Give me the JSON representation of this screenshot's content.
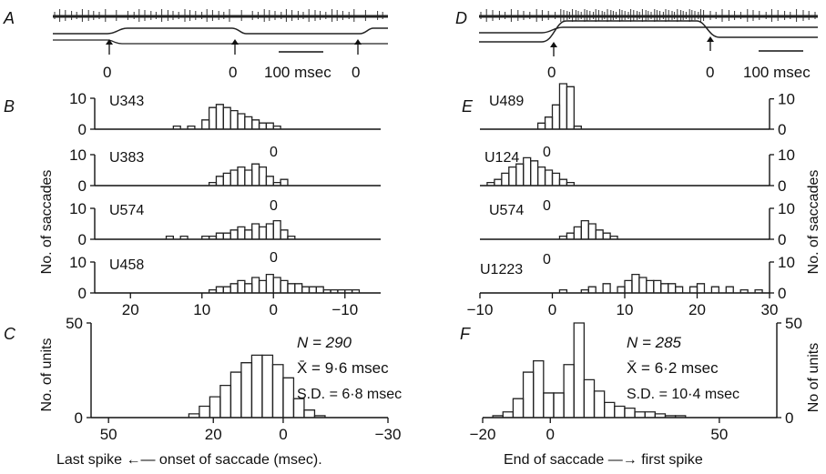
{
  "figure": {
    "panel_labels": {
      "A": "A",
      "B": "B",
      "C": "C",
      "D": "D",
      "E": "E",
      "F": "F"
    },
    "left_bottom_xlabel": "Last spike ←— onset of saccade (msec).",
    "right_bottom_xlabel": "End of saccade —→ first spike",
    "left_hist_ylabel": "No. of saccades",
    "right_hist_ylabel": "No. of saccades",
    "left_pop_ylabel": "No. of units",
    "right_pop_ylabel": "No of units",
    "left_stats": {
      "n": "N = 290",
      "mean": "X̄ = 9·6 msec",
      "sd": "S.D. = 6·8 msec"
    },
    "right_stats": {
      "n": "N = 285",
      "mean": "X̄ = 6·2 msec",
      "sd": "S.D. = 10·4 msec"
    },
    "trace_left": {
      "markers": [
        "0",
        "0",
        "0"
      ],
      "scalebar": "100 msec"
    },
    "trace_right": {
      "markers": [
        "0",
        "0"
      ],
      "scalebar": "100 msec"
    }
  },
  "chart_data": [
    {
      "type": "step-histogram",
      "panel": "B",
      "unit": "U343",
      "xlim": [
        25,
        -15
      ],
      "ylim": [
        0,
        10
      ],
      "yticks": [
        0,
        10
      ],
      "bins": [
        [
          14,
          13,
          1
        ],
        [
          12,
          11,
          1
        ],
        [
          10,
          9,
          3
        ],
        [
          9,
          8,
          7
        ],
        [
          8,
          7,
          8
        ],
        [
          7,
          6,
          7
        ],
        [
          6,
          5,
          6
        ],
        [
          5,
          4,
          5
        ],
        [
          4,
          3,
          4
        ],
        [
          3,
          2,
          3
        ],
        [
          2,
          1,
          2
        ],
        [
          1,
          0,
          2
        ],
        [
          0,
          -1,
          1
        ]
      ]
    },
    {
      "type": "step-histogram",
      "panel": "B",
      "unit": "U383",
      "zero_label": "0",
      "xlim": [
        25,
        -15
      ],
      "ylim": [
        0,
        10
      ],
      "yticks": [
        0,
        10
      ],
      "bins": [
        [
          9,
          8,
          1
        ],
        [
          8,
          7,
          3
        ],
        [
          7,
          6,
          4
        ],
        [
          6,
          5,
          5
        ],
        [
          5,
          4,
          6
        ],
        [
          4,
          3,
          5
        ],
        [
          3,
          2,
          7
        ],
        [
          2,
          1,
          6
        ],
        [
          1,
          0,
          3
        ],
        [
          0,
          -1,
          1
        ],
        [
          -1,
          -2,
          2
        ]
      ]
    },
    {
      "type": "step-histogram",
      "panel": "B",
      "unit": "U574",
      "zero_label": "0",
      "xlim": [
        25,
        -15
      ],
      "ylim": [
        0,
        10
      ],
      "yticks": [
        0,
        10
      ],
      "bins": [
        [
          15,
          14,
          1
        ],
        [
          13,
          12,
          1
        ],
        [
          10,
          9,
          1
        ],
        [
          9,
          8,
          1
        ],
        [
          8,
          7,
          2
        ],
        [
          7,
          6,
          2
        ],
        [
          6,
          5,
          3
        ],
        [
          5,
          4,
          4
        ],
        [
          4,
          3,
          3
        ],
        [
          3,
          2,
          5
        ],
        [
          2,
          1,
          4
        ],
        [
          1,
          0,
          5
        ],
        [
          0,
          -1,
          6
        ],
        [
          -1,
          -2,
          3
        ],
        [
          -2,
          -3,
          1
        ]
      ]
    },
    {
      "type": "step-histogram",
      "panel": "B",
      "unit": "U458",
      "zero_label": "0",
      "xlim": [
        25,
        -15
      ],
      "ylim": [
        0,
        10
      ],
      "yticks": [
        0,
        10
      ],
      "bins": [
        [
          9,
          8,
          1
        ],
        [
          8,
          7,
          2
        ],
        [
          7,
          6,
          2
        ],
        [
          6,
          5,
          3
        ],
        [
          5,
          4,
          4
        ],
        [
          4,
          3,
          3
        ],
        [
          3,
          2,
          5
        ],
        [
          2,
          1,
          4
        ],
        [
          1,
          0,
          6
        ],
        [
          0,
          -1,
          5
        ],
        [
          -1,
          -2,
          4
        ],
        [
          -2,
          -3,
          3
        ],
        [
          -3,
          -4,
          3
        ],
        [
          -4,
          -5,
          2
        ],
        [
          -5,
          -6,
          2
        ],
        [
          -6,
          -7,
          2
        ],
        [
          -7,
          -8,
          1
        ],
        [
          -8,
          -9,
          1
        ],
        [
          -9,
          -10,
          1
        ],
        [
          -10,
          -11,
          1
        ],
        [
          -11,
          -12,
          1
        ]
      ]
    },
    {
      "type": "step-histogram",
      "panel": "E",
      "unit": "U489",
      "xlim": [
        -10,
        30
      ],
      "ylim": [
        0,
        15
      ],
      "yticks": [
        0,
        10
      ],
      "bins": [
        [
          -2,
          -1,
          2
        ],
        [
          -1,
          0,
          4
        ],
        [
          0,
          1,
          8
        ],
        [
          1,
          2,
          15
        ],
        [
          2,
          3,
          14
        ],
        [
          3,
          4,
          1
        ]
      ]
    },
    {
      "type": "step-histogram",
      "panel": "E",
      "unit": "U124",
      "zero_label": "0",
      "xlim": [
        -10,
        30
      ],
      "ylim": [
        0,
        10
      ],
      "yticks": [
        0,
        10
      ],
      "bins": [
        [
          -9,
          -8,
          1
        ],
        [
          -8,
          -7,
          2
        ],
        [
          -7,
          -6,
          4
        ],
        [
          -6,
          -5,
          6
        ],
        [
          -5,
          -4,
          7
        ],
        [
          -4,
          -3,
          9
        ],
        [
          -3,
          -2,
          8
        ],
        [
          -2,
          -1,
          6
        ],
        [
          -1,
          0,
          5
        ],
        [
          0,
          1,
          4
        ],
        [
          1,
          2,
          2
        ],
        [
          2,
          3,
          1
        ]
      ]
    },
    {
      "type": "step-histogram",
      "panel": "E",
      "unit": "U574",
      "zero_label": "0",
      "xlim": [
        -10,
        30
      ],
      "ylim": [
        0,
        10
      ],
      "yticks": [
        0,
        10
      ],
      "bins": [
        [
          1,
          2,
          1
        ],
        [
          2,
          3,
          2
        ],
        [
          3,
          4,
          4
        ],
        [
          4,
          5,
          6
        ],
        [
          5,
          6,
          5
        ],
        [
          6,
          7,
          3
        ],
        [
          7,
          8,
          2
        ],
        [
          8,
          9,
          1
        ]
      ]
    },
    {
      "type": "step-histogram",
      "panel": "E",
      "unit": "U1223",
      "zero_label": "0",
      "xlim": [
        -10,
        30
      ],
      "ylim": [
        0,
        10
      ],
      "yticks": [
        0,
        10
      ],
      "bins": [
        [
          1,
          2,
          1
        ],
        [
          4,
          5,
          1
        ],
        [
          5,
          6,
          2
        ],
        [
          7,
          8,
          3
        ],
        [
          9,
          10,
          2
        ],
        [
          10,
          11,
          4
        ],
        [
          11,
          12,
          6
        ],
        [
          12,
          13,
          5
        ],
        [
          13,
          14,
          4
        ],
        [
          14,
          15,
          4
        ],
        [
          15,
          16,
          3
        ],
        [
          16,
          17,
          3
        ],
        [
          17,
          18,
          2
        ],
        [
          19,
          20,
          2
        ],
        [
          20,
          21,
          3
        ],
        [
          22,
          23,
          2
        ],
        [
          24,
          25,
          2
        ],
        [
          26,
          27,
          1
        ],
        [
          28,
          29,
          1
        ]
      ]
    },
    {
      "type": "step-histogram",
      "panel": "C",
      "xlabel": "Last spike ←— onset of saccade (msec).",
      "ylabel": "No. of units",
      "xlim": [
        55,
        -30
      ],
      "ylim": [
        0,
        50
      ],
      "yticks": [
        0,
        50
      ],
      "xticks": [
        50,
        20,
        0,
        -30
      ],
      "bins": [
        [
          27,
          24,
          2
        ],
        [
          24,
          21,
          6
        ],
        [
          21,
          18,
          11
        ],
        [
          18,
          15,
          17
        ],
        [
          15,
          12,
          24
        ],
        [
          12,
          9,
          29
        ],
        [
          9,
          6,
          33
        ],
        [
          6,
          3,
          33
        ],
        [
          3,
          0,
          28
        ],
        [
          0,
          -3,
          21
        ],
        [
          -3,
          -6,
          10
        ],
        [
          -6,
          -9,
          4
        ],
        [
          -9,
          -12,
          1
        ]
      ]
    },
    {
      "type": "step-histogram",
      "panel": "F",
      "xlabel": "End of saccade —→ first spike",
      "ylabel": "No of units",
      "xlim": [
        -20,
        67
      ],
      "ylim": [
        0,
        50
      ],
      "yticks": [
        0,
        50
      ],
      "xticks": [
        -20,
        0,
        50
      ],
      "bins": [
        [
          -17,
          -14,
          1
        ],
        [
          -14,
          -11,
          3
        ],
        [
          -11,
          -8,
          10
        ],
        [
          -8,
          -5,
          24
        ],
        [
          -5,
          -2,
          30
        ],
        [
          -2,
          1,
          13
        ],
        [
          1,
          4,
          13
        ],
        [
          4,
          7,
          28
        ],
        [
          7,
          10,
          50
        ],
        [
          10,
          13,
          20
        ],
        [
          13,
          16,
          14
        ],
        [
          16,
          19,
          8
        ],
        [
          19,
          22,
          6
        ],
        [
          22,
          25,
          5
        ],
        [
          25,
          28,
          3
        ],
        [
          28,
          31,
          3
        ],
        [
          31,
          34,
          2
        ],
        [
          34,
          37,
          1
        ],
        [
          37,
          40,
          1
        ]
      ]
    }
  ]
}
